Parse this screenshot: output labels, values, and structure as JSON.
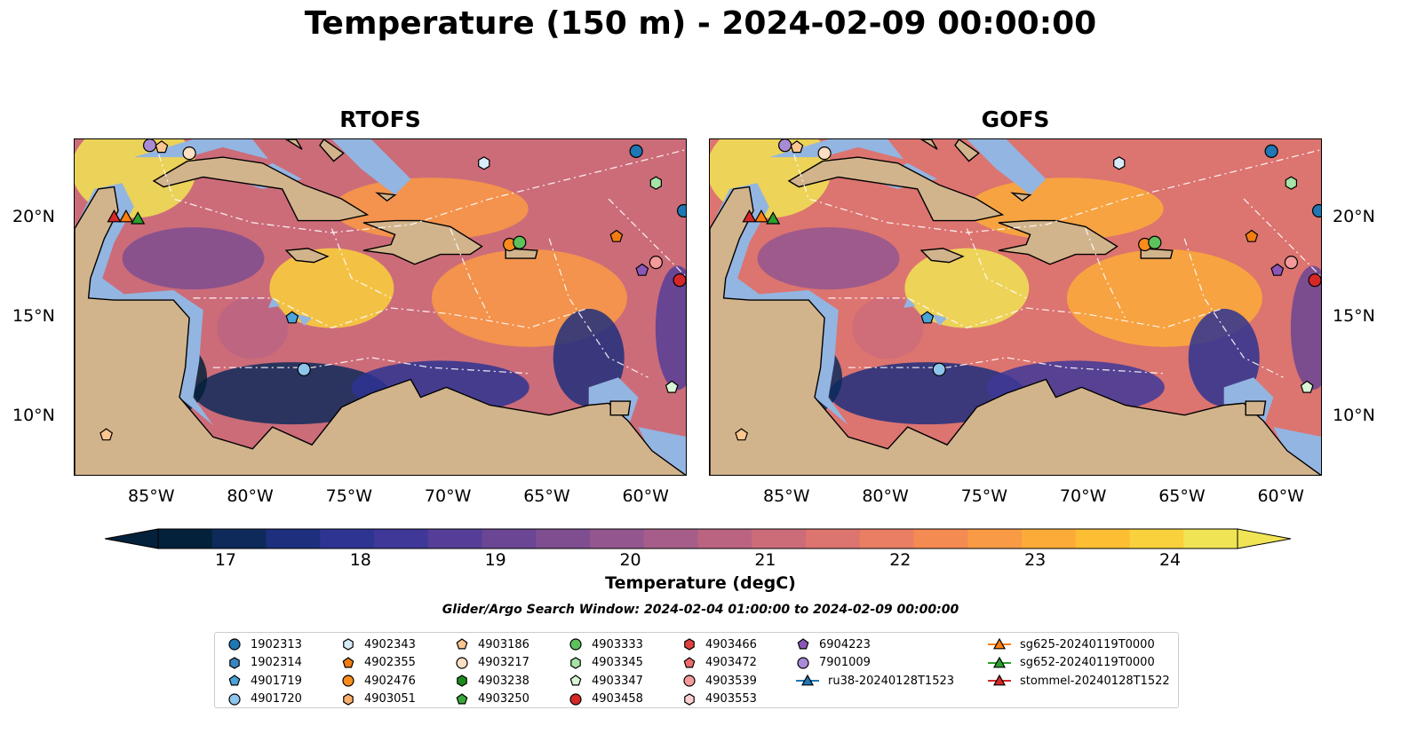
{
  "title": "Temperature (150 m) - 2024-02-09 00:00:00",
  "panels": [
    {
      "name": "RTOFS",
      "palette_shift": 0
    },
    {
      "name": "GOFS",
      "palette_shift": 1
    }
  ],
  "axes": {
    "lon_ticks": [
      "85°W",
      "80°W",
      "75°W",
      "70°W",
      "65°W",
      "60°W"
    ],
    "lon_values": [
      -85,
      -80,
      -75,
      -70,
      -65,
      -60
    ],
    "lat_ticks": [
      "20°N",
      "15°N",
      "10°N"
    ],
    "lat_values": [
      20,
      15,
      10
    ],
    "lon_range": [
      -89,
      -58
    ],
    "lat_range": [
      7,
      24
    ]
  },
  "colorbar": {
    "label": "Temperature (degC)",
    "ticks": [
      "17",
      "18",
      "19",
      "20",
      "21",
      "22",
      "23",
      "24"
    ],
    "range": [
      16.5,
      24.5
    ],
    "extend": "both",
    "colors": [
      "#03213a",
      "#0d2a5a",
      "#1e2f7d",
      "#2e3492",
      "#3f3898",
      "#553e97",
      "#6a4694",
      "#7e4e91",
      "#93568f",
      "#a75d89",
      "#bb6482",
      "#cc6c79",
      "#dc7470",
      "#e97e63",
      "#f38b53",
      "#f99a45",
      "#fcab38",
      "#fdbe34",
      "#f9d13c",
      "#f0e454"
    ]
  },
  "search_window": "Glider/Argo Search Window: 2024-02-04 01:00:00 to 2024-02-09 00:00:00",
  "chart_data": {
    "type": "heatmap",
    "variable": "Temperature (150 m)",
    "units": "degC",
    "panels": [
      "RTOFS",
      "GOFS"
    ],
    "legend": [
      {
        "id": "1902313",
        "marker": "circle",
        "color": "#1f77b4"
      },
      {
        "id": "1902314",
        "marker": "hexagon",
        "color": "#3a86c1"
      },
      {
        "id": "4901719",
        "marker": "pentagon",
        "color": "#4aa3d9"
      },
      {
        "id": "4901720",
        "marker": "circle",
        "color": "#8ec5ea"
      },
      {
        "id": "4902343",
        "marker": "hexagon",
        "color": "#d7ecf8"
      },
      {
        "id": "4902355",
        "marker": "pentagon",
        "color": "#f17d12"
      },
      {
        "id": "4902476",
        "marker": "circle",
        "color": "#fb8c1b"
      },
      {
        "id": "4903051",
        "marker": "hexagon",
        "color": "#fdae6b"
      },
      {
        "id": "4903186",
        "marker": "pentagon",
        "color": "#fdc58f"
      },
      {
        "id": "4903217",
        "marker": "circle",
        "color": "#fde0c4"
      },
      {
        "id": "4903238",
        "marker": "hexagon",
        "color": "#1e8a1e"
      },
      {
        "id": "4903250",
        "marker": "pentagon",
        "color": "#39a839"
      },
      {
        "id": "4903333",
        "marker": "circle",
        "color": "#5cc25c"
      },
      {
        "id": "4903345",
        "marker": "hexagon",
        "color": "#a6e3a6"
      },
      {
        "id": "4903347",
        "marker": "pentagon",
        "color": "#d9f5d6"
      },
      {
        "id": "4903458",
        "marker": "circle",
        "color": "#d62728"
      },
      {
        "id": "4903466",
        "marker": "hexagon",
        "color": "#e0403f"
      },
      {
        "id": "4903472",
        "marker": "pentagon",
        "color": "#f06b6b"
      },
      {
        "id": "4903539",
        "marker": "circle",
        "color": "#f59a9a"
      },
      {
        "id": "4903553",
        "marker": "hexagon",
        "color": "#fcd0d0"
      },
      {
        "id": "6904223",
        "marker": "pentagon",
        "color": "#8a57b8"
      },
      {
        "id": "7901009",
        "marker": "circle",
        "color": "#a98ad6"
      },
      {
        "id": "ru38-20240128T1523",
        "marker": "triangle-line",
        "color": "#1f77b4"
      },
      {
        "id": "sg625-20240119T0000",
        "marker": "triangle-line",
        "color": "#ff7f0e"
      },
      {
        "id": "sg652-20240119T0000",
        "marker": "triangle-line",
        "color": "#2ca02c"
      },
      {
        "id": "stommel-20240128T1522",
        "marker": "triangle-line",
        "color": "#d62728"
      }
    ],
    "markers": [
      {
        "id": "1902313",
        "lon": -60.6,
        "lat": 23.4
      },
      {
        "id": "1902313",
        "lon": -58.2,
        "lat": 20.4
      },
      {
        "id": "4901719",
        "lon": -78.0,
        "lat": 15.0
      },
      {
        "id": "4901720",
        "lon": -77.4,
        "lat": 12.4
      },
      {
        "id": "4902343",
        "lon": -68.3,
        "lat": 22.8
      },
      {
        "id": "4902355",
        "lon": -61.6,
        "lat": 19.1
      },
      {
        "id": "4902476",
        "lon": -67.0,
        "lat": 18.7
      },
      {
        "id": "4903186",
        "lon": -84.6,
        "lat": 23.6
      },
      {
        "id": "4903186",
        "lon": -87.4,
        "lat": 9.1
      },
      {
        "id": "4903217",
        "lon": -83.2,
        "lat": 23.3
      },
      {
        "id": "4903333",
        "lon": -66.5,
        "lat": 18.8
      },
      {
        "id": "4903345",
        "lon": -59.6,
        "lat": 21.8
      },
      {
        "id": "4903347",
        "lon": -58.8,
        "lat": 11.5
      },
      {
        "id": "4903458",
        "lon": -58.4,
        "lat": 16.9
      },
      {
        "id": "4903539",
        "lon": -59.6,
        "lat": 17.8
      },
      {
        "id": "6904223",
        "lon": -60.3,
        "lat": 17.4
      },
      {
        "id": "7901009",
        "lon": -85.2,
        "lat": 23.7
      },
      {
        "id": "stommel-20240128T1522",
        "lon": -87.0,
        "lat": 20.1
      },
      {
        "id": "sg625-20240119T0000",
        "lon": -86.4,
        "lat": 20.1
      },
      {
        "id": "sg652-20240119T0000",
        "lon": -85.8,
        "lat": 20.0
      }
    ]
  }
}
